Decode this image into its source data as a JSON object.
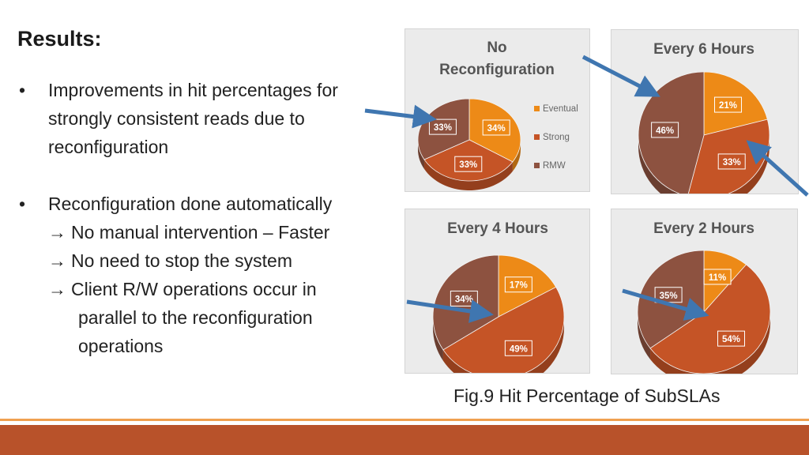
{
  "slide": {
    "title": "Results:",
    "bullets": [
      {
        "marker": "•",
        "lines": [
          "Improvements in hit percentages for",
          "strongly consistent reads due to",
          "reconfiguration"
        ]
      },
      {
        "marker": "•",
        "lines": [
          "Reconfiguration done automatically"
        ],
        "subpoints": [
          {
            "arrow": "→",
            "lines": [
              "No manual intervention – Faster"
            ]
          },
          {
            "arrow": "→",
            "lines": [
              "No need to stop the system"
            ]
          },
          {
            "arrow": "→",
            "lines": [
              "Client R/W operations occur in",
              "parallel to the reconfiguration",
              "operations"
            ]
          }
        ]
      }
    ],
    "caption": "Fig.9 Hit Percentage of SubSLAs"
  },
  "colors": {
    "eventual": "#ed8a17",
    "strong": "#c55426",
    "rmw": "#8d5240",
    "arrow": "#3f76b0",
    "footer": "#b8522a"
  },
  "chart_data": [
    {
      "type": "pie",
      "title": "No Reconfiguration",
      "categories": [
        "Eventual",
        "Strong",
        "RMW"
      ],
      "values": [
        34,
        33,
        33
      ],
      "labels": [
        "34%",
        "33%",
        "33%"
      ],
      "legend": "right"
    },
    {
      "type": "pie",
      "title": "Every 6 Hours",
      "categories": [
        "Eventual",
        "Strong",
        "RMW"
      ],
      "values": [
        21,
        33,
        46
      ],
      "labels": [
        "21%",
        "33%",
        "46%"
      ]
    },
    {
      "type": "pie",
      "title": "Every 4 Hours",
      "categories": [
        "Eventual",
        "Strong",
        "RMW"
      ],
      "values": [
        17,
        49,
        34
      ],
      "labels": [
        "17%",
        "49%",
        "34%"
      ]
    },
    {
      "type": "pie",
      "title": "Every 2 Hours",
      "categories": [
        "Eventual",
        "Strong",
        "RMW"
      ],
      "values": [
        11,
        54,
        35
      ],
      "labels": [
        "11%",
        "54%",
        "35%"
      ]
    }
  ]
}
